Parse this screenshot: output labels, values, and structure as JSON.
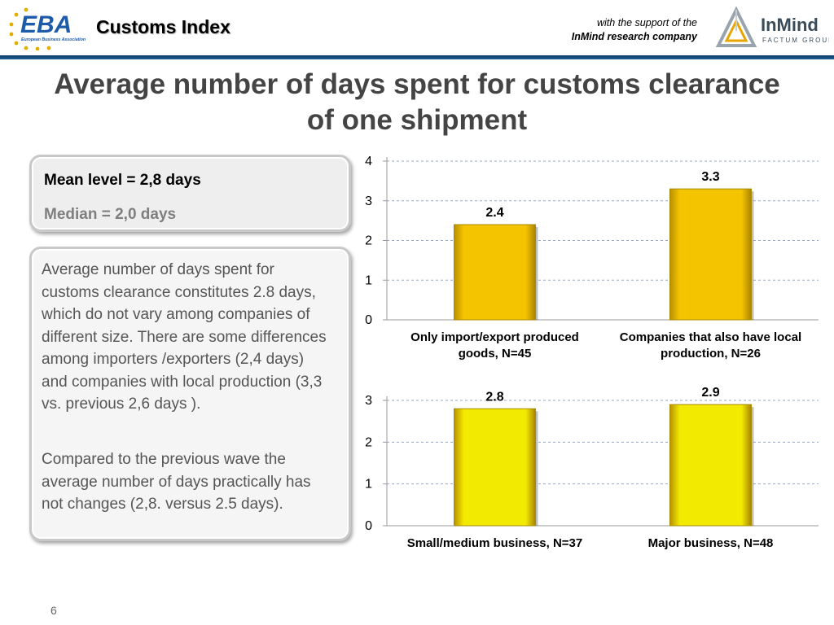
{
  "header": {
    "logo_text": "EBA",
    "logo_subtext": "European Business Association",
    "brand_title": "Customs Index",
    "support_line1": "with the support of the",
    "support_line2": "InMind research company",
    "partner_logo_name": "InMind",
    "partner_logo_sub": "FACTUM GROUP"
  },
  "title": "Average number of days spent for customs clearance of one shipment",
  "summary": {
    "mean": "Mean level = 2,8 days",
    "median": "Median =  2,0 days"
  },
  "description": {
    "p1": "Average number of days spent for customs clearance constitutes 2.8 days, which do not vary among companies of different size. There are some differences  among importers /exporters (2,4 days) and companies with local production (3,3 vs. previous 2,6 days ).",
    "p2": "Compared to the previous wave the average number of days practically has not changes (2,8. versus 2.5 days)."
  },
  "page_number": "6",
  "colors": {
    "bar_gold": "#f5c400",
    "bar_yellow": "#f2ea00",
    "grid": "#8fa9d6",
    "header_rule": "#0b3a66"
  },
  "chart_data": [
    {
      "type": "bar",
      "categories": [
        "Only import/export produced goods, N=45",
        "Companies that also have local production, N=26"
      ],
      "values": [
        2.4,
        3.3
      ],
      "value_labels": [
        "2.4",
        "3.3"
      ],
      "ylim": [
        0,
        4
      ],
      "yticks": [
        0,
        1,
        2,
        3,
        4
      ],
      "grid": true,
      "color": "#f5c400"
    },
    {
      "type": "bar",
      "categories": [
        "Small/medium business, N=37",
        "Major business, N=48"
      ],
      "values": [
        2.8,
        2.9
      ],
      "value_labels": [
        "2.8",
        "2.9"
      ],
      "ylim": [
        0,
        3
      ],
      "yticks": [
        0,
        1,
        2,
        3
      ],
      "grid": true,
      "color": "#f2ea00"
    }
  ]
}
